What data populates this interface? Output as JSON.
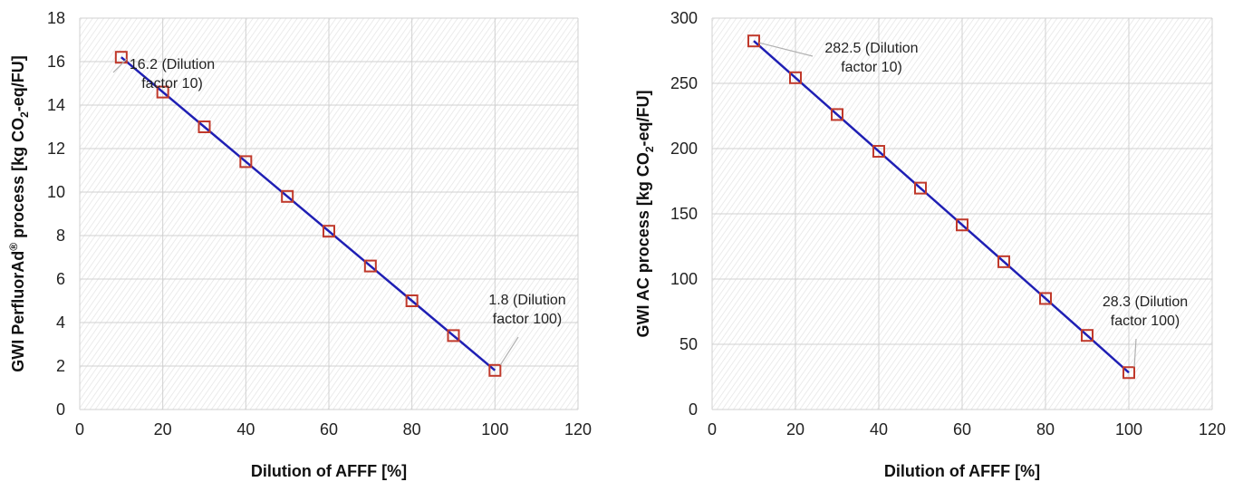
{
  "colors": {
    "line": "#1f1fb4",
    "marker": "#c0392b",
    "grid": "#d0d0d0",
    "hatch": "#e3e3e3"
  },
  "chart_data": [
    {
      "type": "line",
      "title": "",
      "xlabel": "Dilution of AFFF [%]",
      "ylabel_parts": [
        "GWI Perfluor",
        "Ad",
        "®",
        " process [kg CO",
        "2",
        "-eq/FU]"
      ],
      "xlim": [
        0,
        120
      ],
      "ylim": [
        0,
        18
      ],
      "xticks": [
        0,
        20,
        40,
        60,
        80,
        100,
        120
      ],
      "yticks": [
        0,
        2,
        4,
        6,
        8,
        10,
        12,
        14,
        16,
        18
      ],
      "x": [
        10,
        20,
        30,
        40,
        50,
        60,
        70,
        80,
        90,
        100
      ],
      "series": [
        {
          "values": [
            16.2,
            14.6,
            13.0,
            11.4,
            9.8,
            8.2,
            6.6,
            5.0,
            3.4,
            1.8
          ]
        }
      ],
      "annotations": [
        {
          "lines": [
            "16.2 (Dilution",
            "factor 10)"
          ],
          "x": 10,
          "y": 16.2
        },
        {
          "lines": [
            "1.8 (Dilution",
            "factor 100)"
          ],
          "x": 100,
          "y": 1.8
        }
      ],
      "grid": true
    },
    {
      "type": "line",
      "title": "",
      "xlabel": "Dilution of AFFF [%]",
      "ylabel_parts": [
        "GWI AC  process [kg CO",
        "2",
        "-eq/FU]"
      ],
      "xlim": [
        0,
        120
      ],
      "ylim": [
        0,
        300
      ],
      "xticks": [
        0,
        20,
        40,
        60,
        80,
        100,
        120
      ],
      "yticks": [
        0,
        50,
        100,
        150,
        200,
        250,
        300
      ],
      "x": [
        10,
        20,
        30,
        40,
        50,
        60,
        70,
        80,
        90,
        100
      ],
      "series": [
        {
          "values": [
            282.5,
            254.3,
            226.1,
            197.9,
            169.7,
            141.5,
            113.3,
            85.1,
            56.8,
            28.3
          ]
        }
      ],
      "annotations": [
        {
          "lines": [
            "282.5 (Dilution",
            "factor 10)"
          ],
          "x": 10,
          "y": 282.5
        },
        {
          "lines": [
            "28.3 (Dilution",
            "factor 100)"
          ],
          "x": 100,
          "y": 28.3
        }
      ],
      "grid": true
    }
  ]
}
